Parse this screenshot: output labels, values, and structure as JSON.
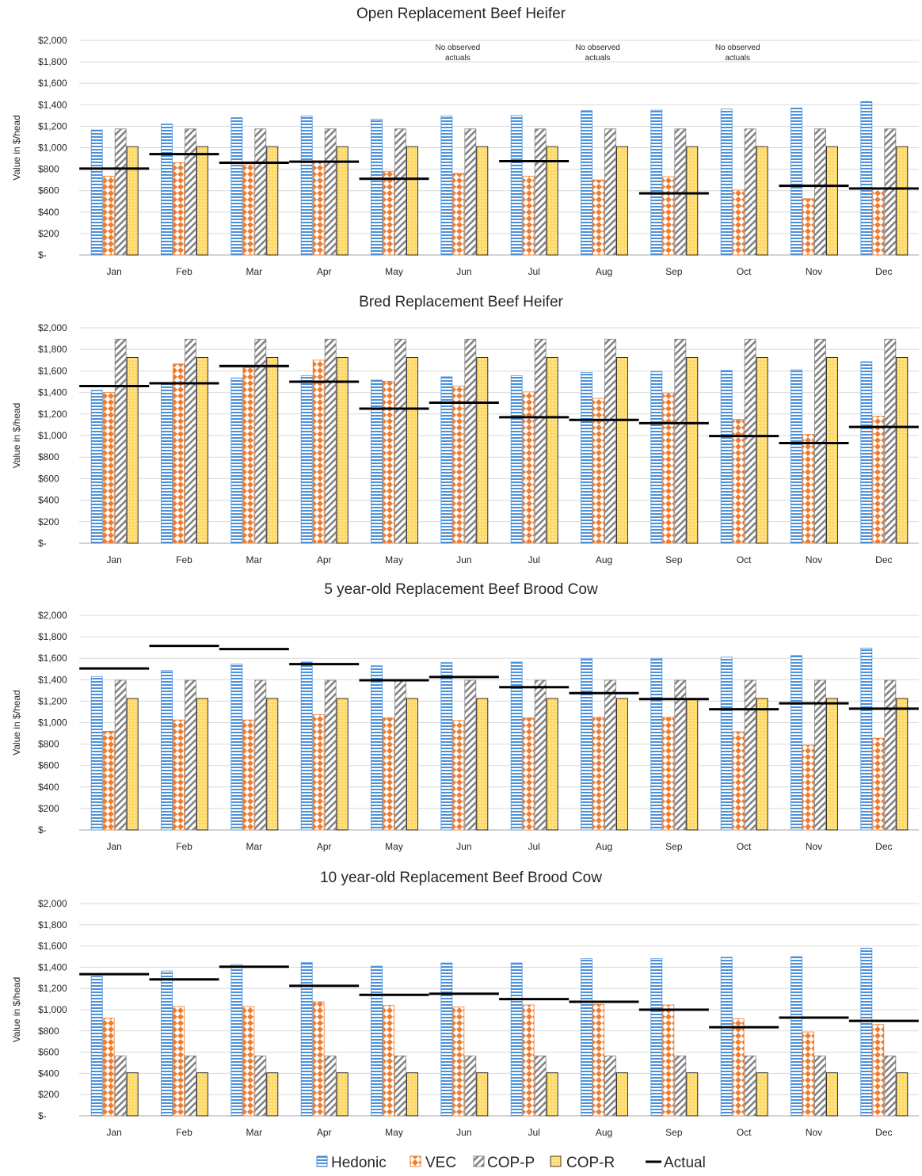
{
  "legend": [
    "Hedonic",
    "VEC",
    "COP-P",
    "COP-R",
    "Actual"
  ],
  "colors": {
    "hedonic": "#4a90d9",
    "vec": "#ed7d31",
    "cop_p": "#808080",
    "cop_r": "#ffd966",
    "actual": "#000000",
    "grid": "#d9d9d9"
  },
  "chart_data": [
    {
      "type": "bar",
      "title": "Open Replacement Beef Heifer",
      "ylabel": "Value in $/head",
      "ylim": [
        0,
        2000
      ],
      "yticks": [
        "$-",
        "$200",
        "$400",
        "$600",
        "$800",
        "$1,000",
        "$1,200",
        "$1,400",
        "$1,600",
        "$1,800",
        "$2,000"
      ],
      "categories": [
        "Jan",
        "Feb",
        "Mar",
        "Apr",
        "May",
        "Jun",
        "Jul",
        "Aug",
        "Sep",
        "Oct",
        "Nov",
        "Dec"
      ],
      "series": [
        {
          "name": "Hedonic",
          "values": [
            1165,
            1220,
            1280,
            1295,
            1265,
            1295,
            1300,
            1345,
            1350,
            1360,
            1370,
            1430
          ]
        },
        {
          "name": "VEC",
          "values": [
            735,
            860,
            840,
            875,
            780,
            760,
            735,
            700,
            730,
            605,
            525,
            620
          ]
        },
        {
          "name": "COP-P",
          "values": [
            1175,
            1175,
            1175,
            1175,
            1175,
            1175,
            1175,
            1175,
            1175,
            1175,
            1175,
            1175
          ]
        },
        {
          "name": "COP-R",
          "values": [
            1010,
            1010,
            1010,
            1010,
            1010,
            1010,
            1010,
            1010,
            1010,
            1010,
            1010,
            1010
          ]
        },
        {
          "name": "Actual",
          "values": [
            805,
            940,
            860,
            870,
            710,
            null,
            875,
            null,
            575,
            null,
            645,
            620
          ]
        }
      ],
      "annotations": [
        {
          "month": "Jun",
          "lines": [
            "No observed",
            "actuals"
          ]
        },
        {
          "month": "Aug",
          "lines": [
            "No observed",
            "actuals"
          ]
        },
        {
          "month": "Oct",
          "lines": [
            "No observed",
            "actuals"
          ]
        }
      ]
    },
    {
      "type": "bar",
      "title": "Bred Replacement Beef Heifer",
      "ylabel": "Value in $/head",
      "ylim": [
        0,
        2000
      ],
      "yticks": [
        "$-",
        "$200",
        "$400",
        "$600",
        "$800",
        "$1,000",
        "$1,200",
        "$1,400",
        "$1,600",
        "$1,800",
        "$2,000"
      ],
      "categories": [
        "Jan",
        "Feb",
        "Mar",
        "Apr",
        "May",
        "Jun",
        "Jul",
        "Aug",
        "Sep",
        "Oct",
        "Nov",
        "Dec"
      ],
      "series": [
        {
          "name": "Hedonic",
          "values": [
            1420,
            1480,
            1535,
            1555,
            1515,
            1545,
            1555,
            1585,
            1595,
            1605,
            1610,
            1685
          ]
        },
        {
          "name": "VEC",
          "values": [
            1400,
            1665,
            1630,
            1700,
            1505,
            1460,
            1405,
            1345,
            1395,
            1150,
            1010,
            1180
          ]
        },
        {
          "name": "COP-P",
          "values": [
            1895,
            1895,
            1895,
            1895,
            1895,
            1895,
            1895,
            1895,
            1895,
            1895,
            1895,
            1895
          ]
        },
        {
          "name": "COP-R",
          "values": [
            1725,
            1725,
            1725,
            1725,
            1725,
            1725,
            1725,
            1725,
            1725,
            1725,
            1725,
            1725
          ]
        },
        {
          "name": "Actual",
          "values": [
            1460,
            1485,
            1645,
            1500,
            1250,
            1305,
            1170,
            1145,
            1115,
            995,
            930,
            1080
          ]
        }
      ],
      "annotations": []
    },
    {
      "type": "bar",
      "title": "5 year-old Replacement Beef Brood Cow",
      "ylabel": "Value in $/head",
      "ylim": [
        0,
        2000
      ],
      "yticks": [
        "$-",
        "$200",
        "$400",
        "$600",
        "$800",
        "$1,000",
        "$1,200",
        "$1,400",
        "$1,600",
        "$1,800",
        "$2,000"
      ],
      "categories": [
        "Jan",
        "Feb",
        "Mar",
        "Apr",
        "May",
        "Jun",
        "Jul",
        "Aug",
        "Sep",
        "Oct",
        "Nov",
        "Dec"
      ],
      "series": [
        {
          "name": "Hedonic",
          "values": [
            1430,
            1485,
            1545,
            1565,
            1530,
            1560,
            1565,
            1600,
            1600,
            1610,
            1625,
            1695
          ]
        },
        {
          "name": "VEC",
          "values": [
            920,
            1025,
            1025,
            1075,
            1045,
            1020,
            1045,
            1050,
            1050,
            915,
            790,
            855
          ]
        },
        {
          "name": "COP-P",
          "values": [
            1395,
            1395,
            1395,
            1395,
            1395,
            1395,
            1395,
            1395,
            1395,
            1395,
            1395,
            1395
          ]
        },
        {
          "name": "COP-R",
          "values": [
            1225,
            1225,
            1225,
            1225,
            1225,
            1225,
            1225,
            1225,
            1225,
            1225,
            1225,
            1225
          ]
        },
        {
          "name": "Actual",
          "values": [
            1505,
            1715,
            1685,
            1545,
            1395,
            1425,
            1330,
            1275,
            1220,
            1125,
            1180,
            1130
          ]
        }
      ],
      "annotations": []
    },
    {
      "type": "bar",
      "title": "10 year-old Replacement Beef Brood Cow",
      "ylabel": "Value in $/head",
      "ylim": [
        0,
        2000
      ],
      "yticks": [
        "$-",
        "$200",
        "$400",
        "$600",
        "$800",
        "$1,000",
        "$1,200",
        "$1,400",
        "$1,600",
        "$1,800",
        "$2,000"
      ],
      "categories": [
        "Jan",
        "Feb",
        "Mar",
        "Apr",
        "May",
        "Jun",
        "Jul",
        "Aug",
        "Sep",
        "Oct",
        "Nov",
        "Dec"
      ],
      "series": [
        {
          "name": "Hedonic",
          "values": [
            1315,
            1365,
            1425,
            1445,
            1410,
            1440,
            1440,
            1480,
            1480,
            1495,
            1500,
            1580
          ]
        },
        {
          "name": "VEC",
          "values": [
            920,
            1030,
            1030,
            1075,
            1040,
            1025,
            1045,
            1050,
            1045,
            915,
            790,
            860
          ]
        },
        {
          "name": "COP-P",
          "values": [
            565,
            565,
            565,
            565,
            565,
            565,
            565,
            565,
            565,
            565,
            565,
            565
          ]
        },
        {
          "name": "COP-R",
          "values": [
            405,
            405,
            405,
            405,
            405,
            405,
            405,
            405,
            405,
            405,
            405,
            405
          ]
        },
        {
          "name": "Actual",
          "values": [
            1335,
            1285,
            1405,
            1225,
            1140,
            1150,
            1100,
            1075,
            1000,
            835,
            925,
            895
          ]
        }
      ],
      "annotations": []
    }
  ]
}
